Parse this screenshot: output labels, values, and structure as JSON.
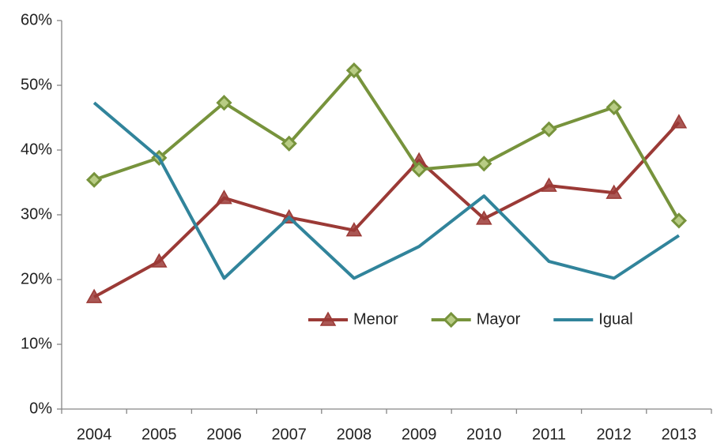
{
  "chart_data": {
    "type": "line",
    "categories": [
      "2004",
      "2005",
      "2006",
      "2007",
      "2008",
      "2009",
      "2010",
      "2011",
      "2012",
      "2013"
    ],
    "series": [
      {
        "name": "Menor",
        "color": "#9b3a36",
        "marker": "triangle",
        "values": [
          17.3,
          22.8,
          32.6,
          29.6,
          27.6,
          38.4,
          29.4,
          34.5,
          33.4,
          44.3
        ]
      },
      {
        "name": "Mayor",
        "color": "#77933c",
        "marker": "diamond",
        "values": [
          35.4,
          38.8,
          47.3,
          41.0,
          52.3,
          37.0,
          37.9,
          43.2,
          46.6,
          29.1
        ]
      },
      {
        "name": "Igual",
        "color": "#31849b",
        "marker": "none",
        "values": [
          47.3,
          38.8,
          20.2,
          29.6,
          20.2,
          25.1,
          32.9,
          22.8,
          20.2,
          26.8
        ]
      }
    ],
    "ylim": [
      0,
      60
    ],
    "yticks": [
      {
        "value": 0,
        "label": "0%"
      },
      {
        "value": 10,
        "label": "10%"
      },
      {
        "value": 20,
        "label": "20%"
      },
      {
        "value": 30,
        "label": "30%"
      },
      {
        "value": 40,
        "label": "40%"
      },
      {
        "value": 50,
        "label": "50%"
      },
      {
        "value": 60,
        "label": "60%"
      }
    ],
    "grid": false,
    "legend": "inside"
  }
}
